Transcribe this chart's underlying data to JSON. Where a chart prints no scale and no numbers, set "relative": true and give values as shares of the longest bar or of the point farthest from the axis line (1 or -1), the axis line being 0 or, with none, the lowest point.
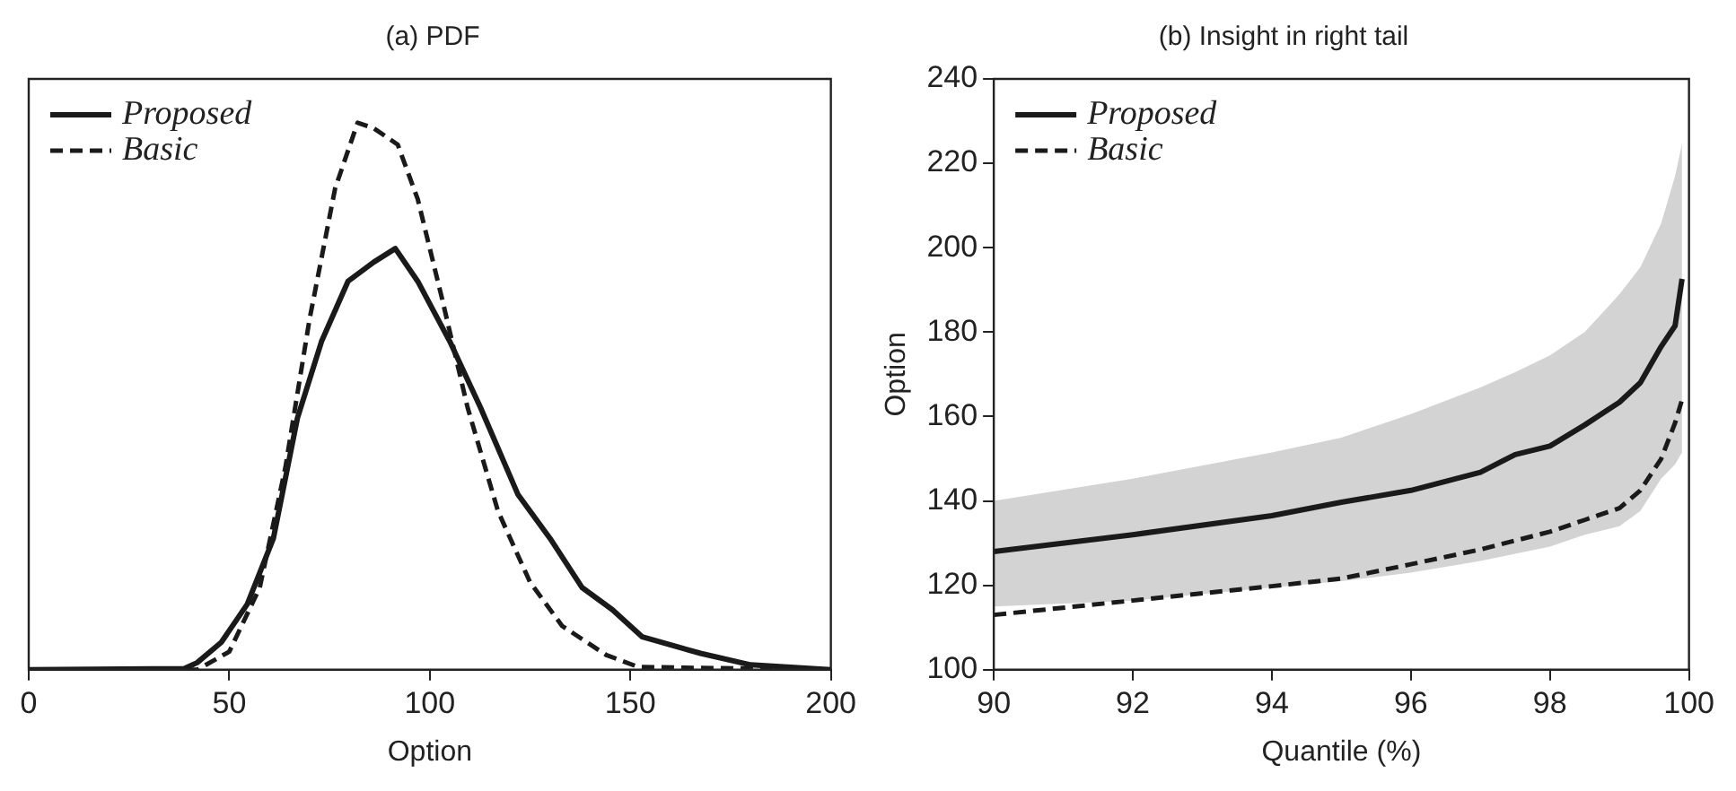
{
  "chart_data": [
    {
      "type": "line",
      "title": "(a) PDF",
      "xlabel": "Option",
      "relative": true,
      "xlim": [
        0,
        200
      ],
      "xticks": [
        0,
        50,
        100,
        150,
        200
      ],
      "tick_labels": "x",
      "legend": "top left",
      "grid": false,
      "marker": "none",
      "series": [
        {
          "name": "Proposed",
          "color": "#1a1a1a",
          "line_style": "solid",
          "x": [
            0,
            38.8,
            42,
            48,
            54.5,
            61,
            67,
            73,
            79.6,
            86,
            91.4,
            97,
            105,
            112.6,
            122,
            130,
            138,
            145.5,
            153,
            167.5,
            180,
            200
          ],
          "values": [
            0,
            0.002,
            0.013,
            0.05,
            0.12,
            0.24,
            0.46,
            0.6,
            0.71,
            0.745,
            0.77,
            0.71,
            0.6,
            0.48,
            0.32,
            0.24,
            0.15,
            0.11,
            0.06,
            0.03,
            0.009,
            0
          ]
        },
        {
          "name": "Basic",
          "color": "#1a1a1a",
          "line_style": "dashed",
          "x": [
            0,
            42,
            50,
            57.6,
            64,
            70,
            76.4,
            82,
            86,
            92,
            97,
            103,
            109.4,
            117,
            125,
            133,
            144,
            152,
            200
          ],
          "values": [
            0,
            0,
            0.033,
            0.15,
            0.37,
            0.64,
            0.88,
            1,
            0.99,
            0.96,
            0.86,
            0.68,
            0.48,
            0.29,
            0.16,
            0.08,
            0.027,
            0.005,
            0
          ]
        }
      ]
    },
    {
      "type": "line",
      "title": "(b) Insight in right tail",
      "xlabel": "Quantile (%)",
      "ylabel": "Option",
      "xlim": [
        90,
        100
      ],
      "xticks": [
        90,
        92,
        94,
        96,
        98,
        100
      ],
      "ylim": [
        100,
        240
      ],
      "yticks": [
        100,
        120,
        140,
        160,
        180,
        200,
        220,
        240
      ],
      "legend": "top left",
      "grid": false,
      "marker": "none",
      "series": [
        {
          "name": "Proposed",
          "color": "#1a1a1a",
          "line_style": "solid",
          "x": [
            90,
            92,
            94,
            95,
            96,
            97,
            97.5,
            98,
            98.5,
            99,
            99.3,
            99.6,
            99.8,
            99.9
          ],
          "values": [
            128,
            132,
            136.5,
            139.7,
            142.5,
            146.8,
            151,
            153,
            158,
            163.4,
            168,
            176.6,
            181.5,
            192.6
          ],
          "lower": [
            115,
            116.4,
            119.5,
            121,
            123,
            125.8,
            127.5,
            129.2,
            132,
            134,
            137.6,
            145.3,
            148.7,
            151.5
          ],
          "upper": [
            140,
            145.3,
            151.5,
            155,
            160.6,
            166.9,
            170.5,
            174.5,
            180,
            189,
            195.4,
            205.8,
            217,
            224.7
          ]
        },
        {
          "name": "Basic",
          "color": "#1a1a1a",
          "line_style": "dashed",
          "x": [
            90,
            92,
            94,
            95,
            96,
            97,
            98,
            98.5,
            99,
            99.3,
            99.6,
            99.8,
            99.9
          ],
          "values": [
            113,
            116.4,
            119.8,
            121.6,
            125,
            128.5,
            132.7,
            135.5,
            138.3,
            142.5,
            150,
            158.5,
            164
          ]
        }
      ]
    }
  ]
}
